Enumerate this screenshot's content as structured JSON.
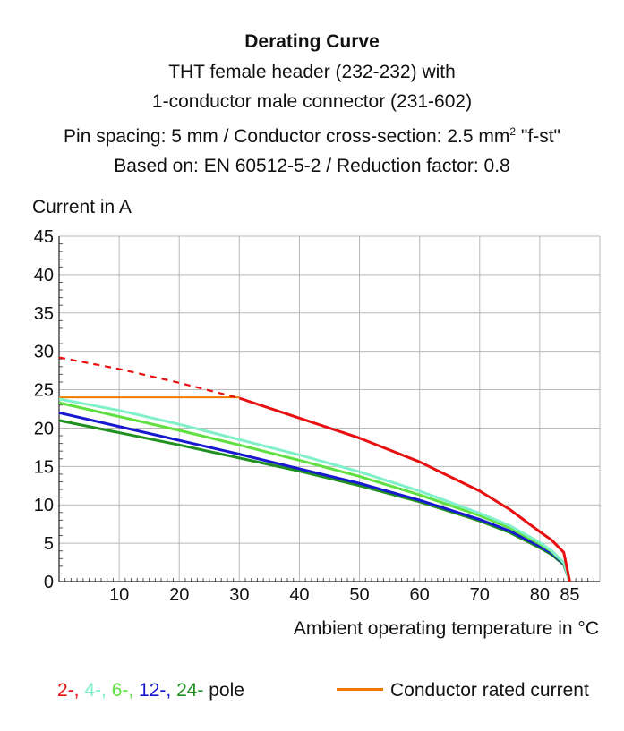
{
  "chart_data": {
    "type": "line",
    "title": "Derating Curve",
    "subtitle_lines": [
      "THT female header (232-232) with",
      "1-conductor male connector (231-602)",
      "Pin spacing: 5 mm / Conductor cross-section: 2.5 mm",
      "\"f-st\"",
      "Based on: EN 60512-5-2 / Reduction factor: 0.8"
    ],
    "superscript": "2",
    "xlabel": "Ambient operating temperature in °C",
    "ylabel": "Current in A",
    "xlim": [
      0,
      90
    ],
    "ylim": [
      0,
      45
    ],
    "x_ticks": [
      10,
      20,
      30,
      40,
      50,
      60,
      70,
      80,
      85
    ],
    "y_ticks": [
      0,
      5,
      10,
      15,
      20,
      25,
      30,
      35,
      40,
      45
    ],
    "grid": true,
    "rated_current": {
      "value": 24,
      "x_end": 30,
      "color": "#f07800",
      "label": "Conductor rated current"
    },
    "series": [
      {
        "name": "2-",
        "color": "#e81010",
        "dashed_until_x": 30,
        "x": [
          0,
          10,
          20,
          30,
          40,
          50,
          60,
          70,
          75,
          80,
          82,
          84,
          85
        ],
        "y": [
          29.2,
          27.7,
          25.9,
          23.9,
          21.3,
          18.7,
          15.6,
          11.8,
          9.4,
          6.5,
          5.4,
          3.8,
          0
        ]
      },
      {
        "name": "4-",
        "color": "#80f0c8",
        "x": [
          0,
          10,
          20,
          30,
          40,
          50,
          60,
          70,
          75,
          80,
          82,
          84,
          85
        ],
        "y": [
          23.8,
          22.3,
          20.5,
          18.5,
          16.5,
          14.3,
          11.8,
          8.9,
          7.3,
          5.1,
          4.0,
          2.5,
          0
        ]
      },
      {
        "name": "6-",
        "color": "#60e040",
        "x": [
          0,
          10,
          20,
          30,
          40,
          50,
          60,
          70,
          75,
          80,
          82,
          84,
          85
        ],
        "y": [
          23.3,
          21.5,
          19.7,
          17.8,
          15.8,
          13.7,
          11.3,
          8.6,
          7.0,
          4.9,
          3.9,
          2.4,
          0
        ]
      },
      {
        "name": "12-",
        "color": "#1818d0",
        "x": [
          0,
          10,
          20,
          30,
          40,
          50,
          60,
          70,
          75,
          80,
          82,
          84,
          85
        ],
        "y": [
          22.0,
          20.2,
          18.4,
          16.6,
          14.7,
          12.8,
          10.6,
          8.1,
          6.6,
          4.6,
          3.7,
          2.3,
          0
        ]
      },
      {
        "name": "24-",
        "color": "#209020",
        "x": [
          0,
          10,
          20,
          30,
          40,
          50,
          60,
          70,
          75,
          80,
          82,
          84,
          85
        ],
        "y": [
          21.0,
          19.4,
          17.8,
          16.1,
          14.4,
          12.5,
          10.4,
          7.9,
          6.4,
          4.4,
          3.5,
          2.2,
          0
        ]
      }
    ],
    "legend_suffix": "pole",
    "legend_placement": "bottom"
  }
}
